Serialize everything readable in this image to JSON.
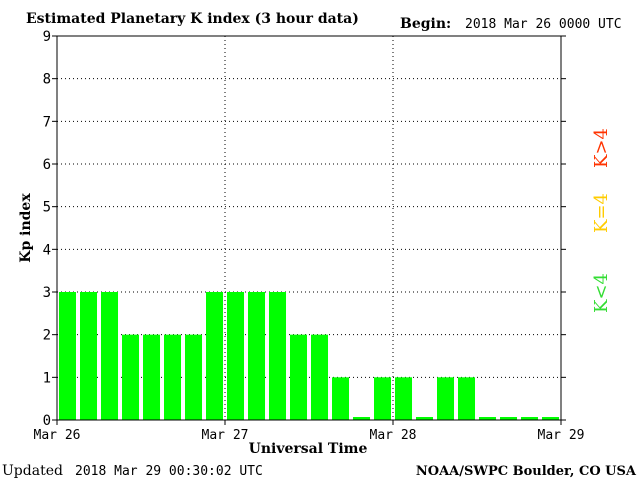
{
  "chart_data": {
    "type": "bar",
    "title": "Estimated Planetary K index (3 hour data)",
    "begin_label": "Begin:",
    "begin_value": "2018 Mar 26 0000 UTC",
    "xlabel": "Universal Time",
    "ylabel": "Kp index",
    "ylim": [
      0,
      9
    ],
    "yticks": [
      "0",
      "1",
      "2",
      "3",
      "4",
      "5",
      "6",
      "7",
      "8",
      "9"
    ],
    "xticks": [
      "Mar 26",
      "Mar 27",
      "Mar 28",
      "Mar 29"
    ],
    "grid": true,
    "interval_hours": 3,
    "values": [
      3,
      3,
      3,
      2,
      2,
      2,
      2,
      3,
      3,
      3,
      3,
      2,
      2,
      1,
      0,
      1,
      1,
      0,
      1,
      1,
      0,
      0,
      0,
      0
    ],
    "bar_color": "#00ff00",
    "legend": [
      {
        "label": "K<4",
        "color": "#33dd33"
      },
      {
        "label": "K=4",
        "color": "#ffcc00"
      },
      {
        "label": "K>4",
        "color": "#ff3300"
      }
    ]
  },
  "footer": {
    "updated_label": "Updated",
    "updated_value": "2018 Mar 29 00:30:02 UTC",
    "source": "NOAA/SWPC Boulder, CO USA"
  }
}
